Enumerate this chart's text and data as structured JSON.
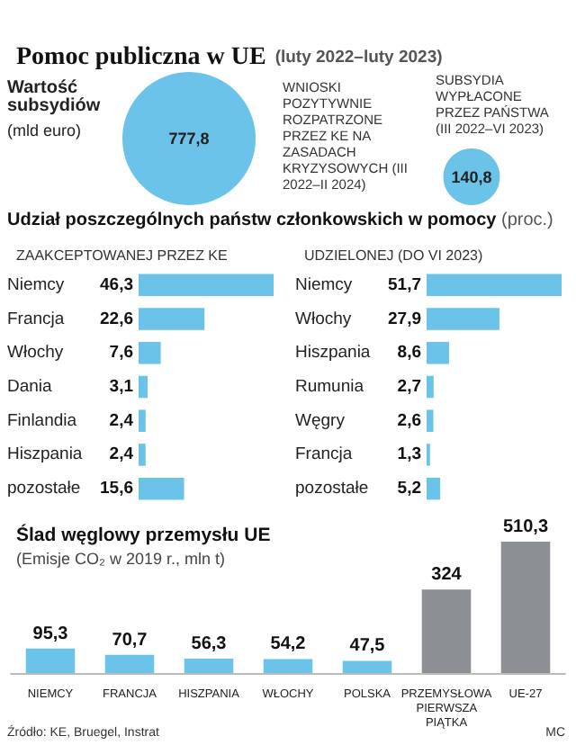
{
  "chart_data": [
    {
      "type": "other",
      "title": "Pomoc publiczna w UE",
      "subtitle": "(luty 2022–luty 2023)",
      "annotations": [
        "Wartość subsydiów",
        "(mld euro)"
      ],
      "categories": [
        "WNIOSKI POZYTYWNIE ROZPATRZONE PRZEZ KE NA ZASADACH KRYZYSOWYCH (III 2022–II 2024)",
        "SUBSYDIA WYPŁACONE PRZEZ PAŃSTWA (III 2022–VI 2023)"
      ],
      "values": [
        777.8,
        140.8
      ],
      "value_labels": [
        "777,8",
        "140,8"
      ],
      "color": "#6cc3ea"
    },
    {
      "type": "bar",
      "orientation": "horizontal",
      "title": "Udział poszczególnych państw członkowskich w pomocy (proc.)",
      "subtitle": "ZAAKCEPTOWANEJ PRZEZ KE",
      "categories": [
        "Niemcy",
        "Francja",
        "Włochy",
        "Dania",
        "Finlandia",
        "Hiszpania",
        "pozostałe"
      ],
      "values": [
        46.3,
        22.6,
        7.6,
        3.1,
        2.4,
        2.4,
        15.6
      ],
      "value_labels": [
        "46,3",
        "22,6",
        "7,6",
        "3,1",
        "2,4",
        "2,4",
        "15,6"
      ],
      "color": "#6cc3ea"
    },
    {
      "type": "bar",
      "orientation": "horizontal",
      "subtitle": "UDZIELONEJ (DO VI 2023)",
      "categories": [
        "Niemcy",
        "Włochy",
        "Hiszpania",
        "Rumunia",
        "Węgry",
        "Francja",
        "pozostałe"
      ],
      "values": [
        51.7,
        27.9,
        8.6,
        2.7,
        2.6,
        1.3,
        5.2
      ],
      "value_labels": [
        "51,7",
        "27,9",
        "8,6",
        "2,7",
        "2,6",
        "1,3",
        "5,2"
      ],
      "color": "#6cc3ea"
    },
    {
      "type": "bar",
      "title": "Ślad węglowy przemysłu UE",
      "subtitle": "(Emisje CO₂ w 2019 r., mln t)",
      "categories": [
        "NIEMCY",
        "FRANCJA",
        "HISZPANIA",
        "WŁOCHY",
        "POLSKA",
        "PRZEMYSŁOWA PIERWSZA PIĄTKA",
        "UE-27"
      ],
      "values": [
        95.3,
        70.7,
        56.3,
        54.2,
        47.5,
        324,
        510.3
      ],
      "value_labels": [
        "95,3",
        "70,7",
        "56,3",
        "54,2",
        "47,5",
        "324",
        "510,3"
      ],
      "colors": [
        "#6cc3ea",
        "#6cc3ea",
        "#6cc3ea",
        "#6cc3ea",
        "#6cc3ea",
        "#8c8f93",
        "#8c8f93"
      ],
      "annotations": [
        "Źródło: KE, Bruegel, Instrat",
        "MC"
      ]
    }
  ]
}
